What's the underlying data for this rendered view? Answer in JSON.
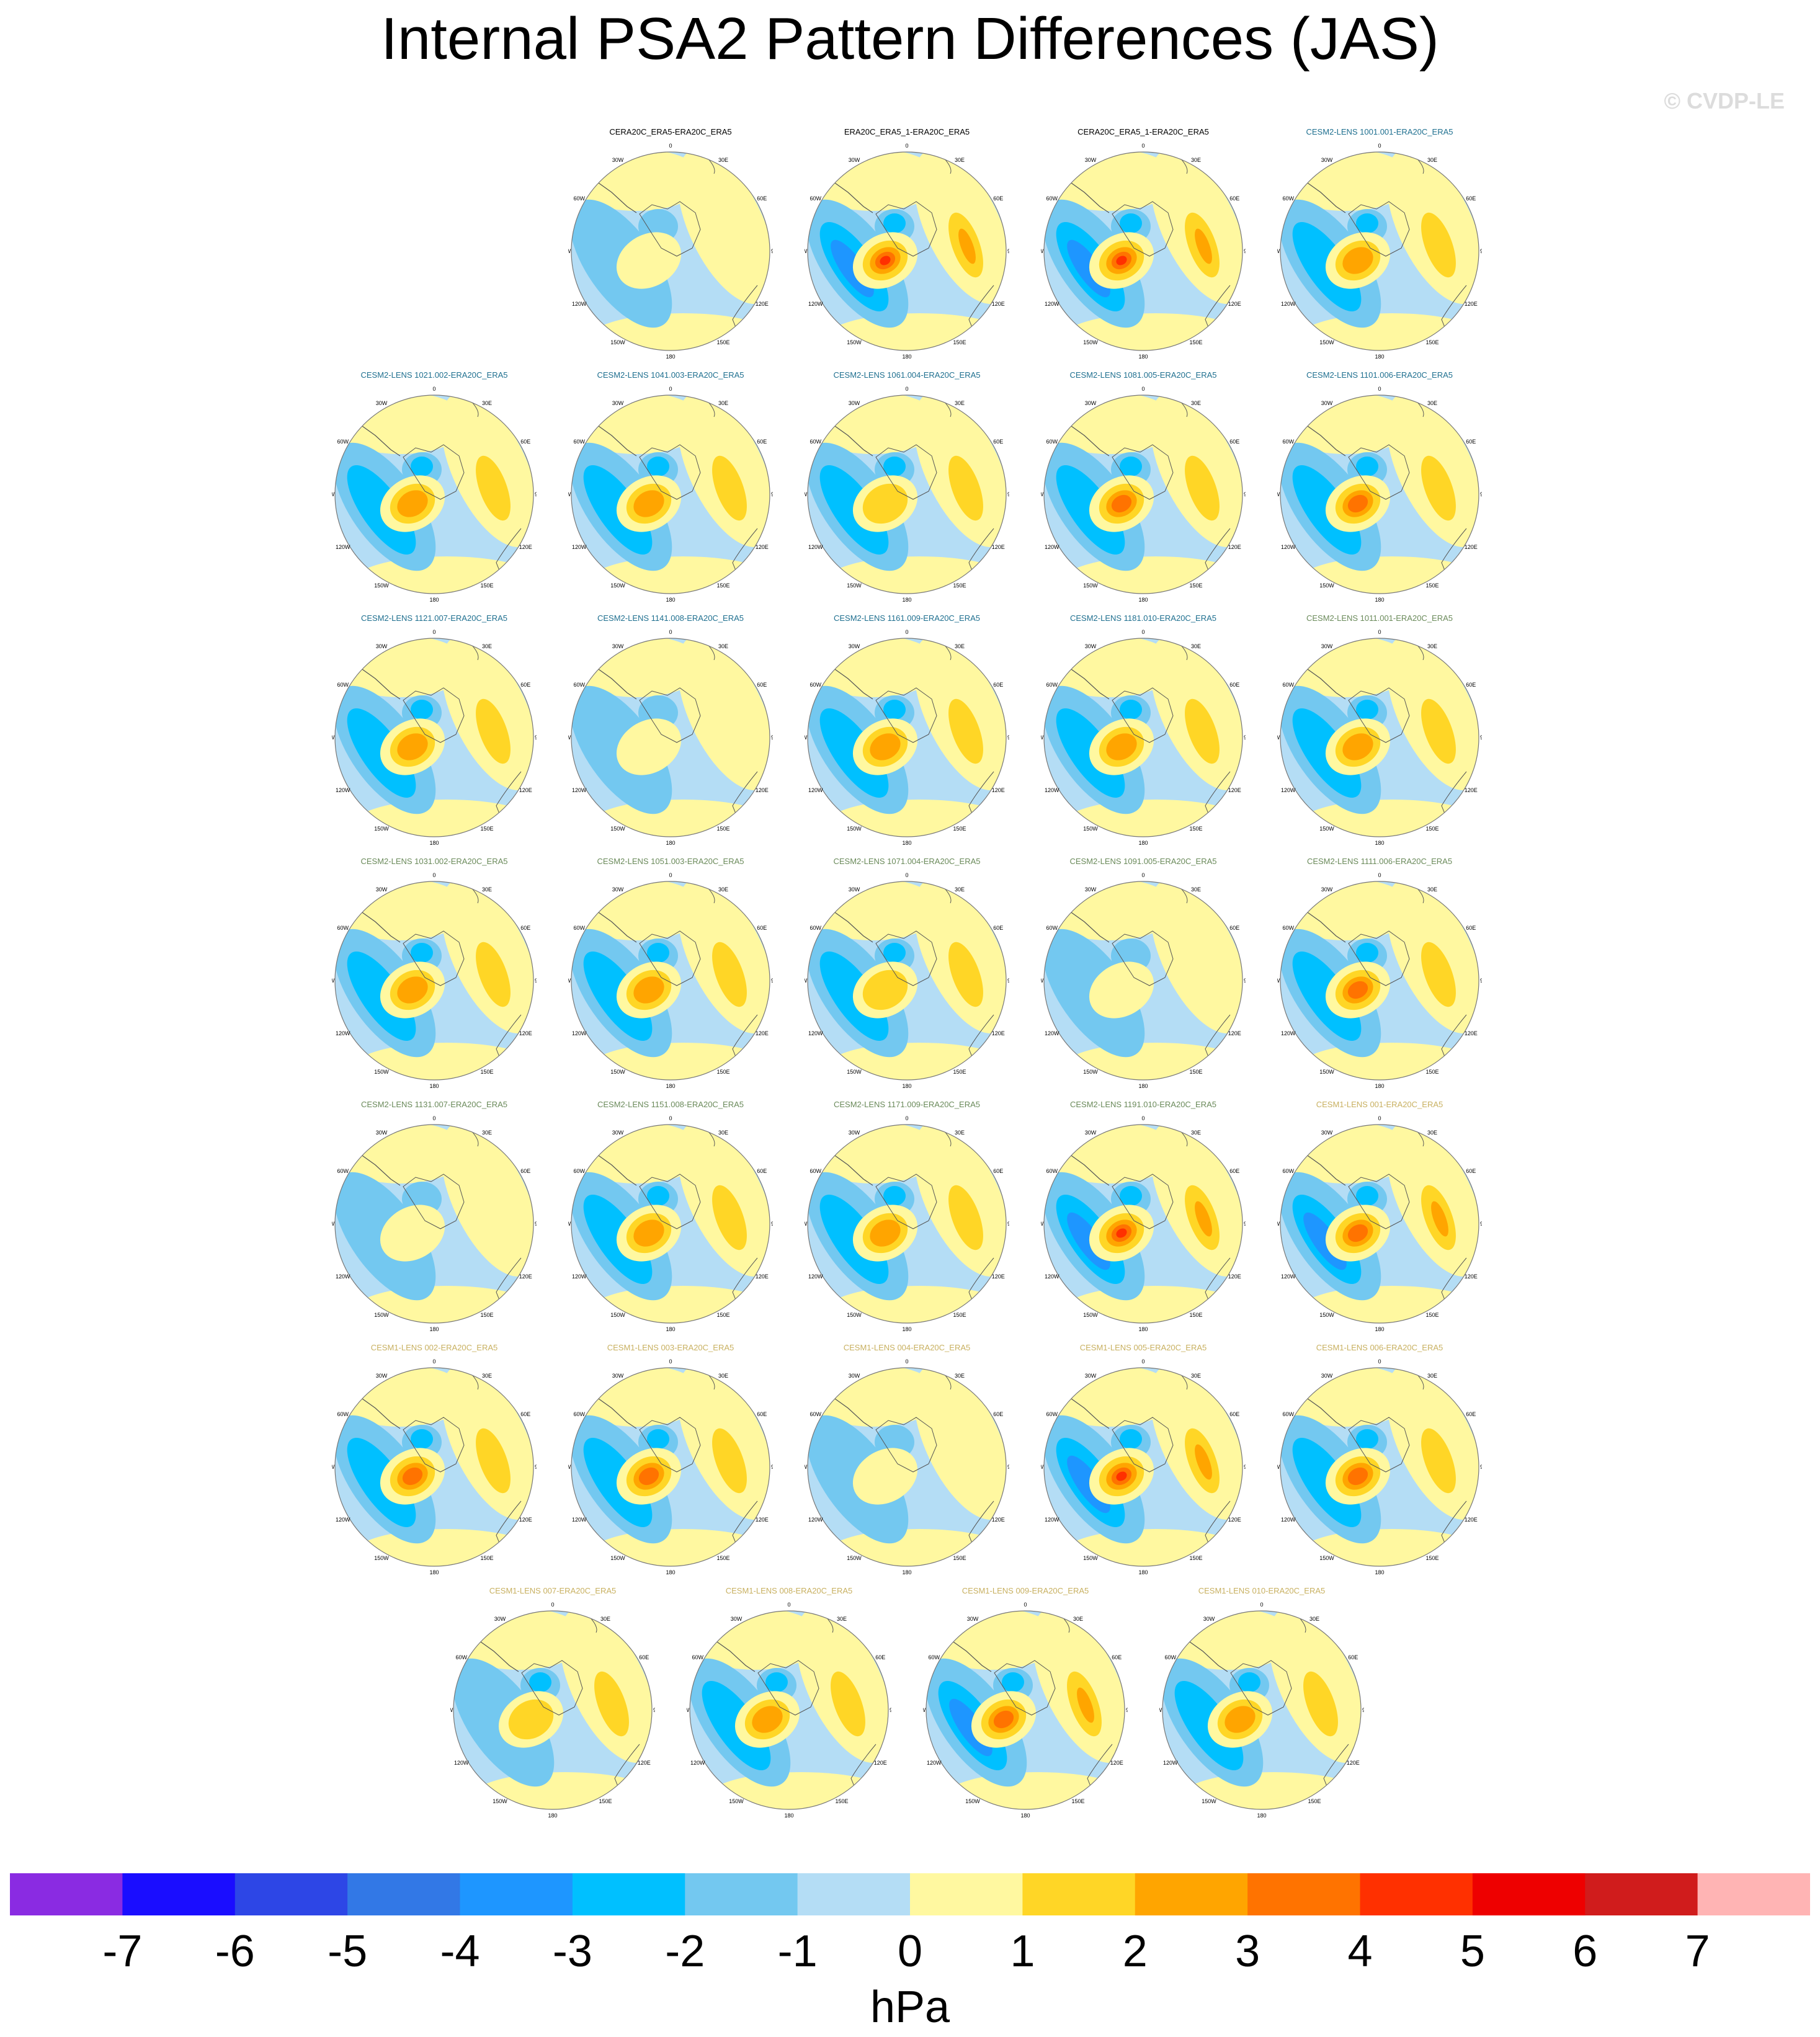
{
  "title": "Internal PSA2 Pattern Differences (JAS)",
  "watermark": "© CVDP-LE",
  "units": "hPa",
  "colors": {
    "title_era": "#000000",
    "title_cesm2_a": "#1e6f8f",
    "title_cesm2_b": "#6a8a5a",
    "title_cesm1": "#c8b060",
    "coast": "#555555"
  },
  "colorbar": {
    "colors": [
      "#8a2be2",
      "#1a0dff",
      "#2d46e6",
      "#3278e6",
      "#1e96ff",
      "#00c0ff",
      "#73c8f0",
      "#b4ddf5",
      "#fff8a0",
      "#ffd626",
      "#ffa500",
      "#ff7300",
      "#ff3000",
      "#ee0000",
      "#d01c1c",
      "#ffb4b4"
    ],
    "labels": [
      "-7",
      "-6",
      "-5",
      "-4",
      "-3",
      "-2",
      "-1",
      "0",
      "1",
      "2",
      "3",
      "4",
      "5",
      "6",
      "7"
    ]
  },
  "grid_labels": [
    "0",
    "30E",
    "60E",
    "90E",
    "120E",
    "150E",
    "180",
    "150W",
    "120W",
    "90W",
    "60W",
    "30W"
  ],
  "panels": [
    {
      "title": "CERA20C_ERA5-ERA20C_ERA5",
      "group": "era",
      "amp": 0.45
    },
    {
      "title": "ERA20C_ERA5_1-ERA20C_ERA5",
      "group": "era",
      "amp": 1.0
    },
    {
      "title": "CERA20C_ERA5_1-ERA20C_ERA5",
      "group": "era",
      "amp": 0.95
    },
    {
      "title": "CESM2-LENS 1001.001-ERA20C_ERA5",
      "group": "cesm2a",
      "amp": 0.7
    },
    {
      "title": "CESM2-LENS 1021.002-ERA20C_ERA5",
      "group": "cesm2a",
      "amp": 0.7
    },
    {
      "title": "CESM2-LENS 1041.003-ERA20C_ERA5",
      "group": "cesm2a",
      "amp": 0.7
    },
    {
      "title": "CESM2-LENS 1061.004-ERA20C_ERA5",
      "group": "cesm2a",
      "amp": 0.6
    },
    {
      "title": "CESM2-LENS 1081.005-ERA20C_ERA5",
      "group": "cesm2a",
      "amp": 0.8
    },
    {
      "title": "CESM2-LENS 1101.006-ERA20C_ERA5",
      "group": "cesm2a",
      "amp": 0.8
    },
    {
      "title": "CESM2-LENS 1121.007-ERA20C_ERA5",
      "group": "cesm2a",
      "amp": 0.75
    },
    {
      "title": "CESM2-LENS 1141.008-ERA20C_ERA5",
      "group": "cesm2a",
      "amp": 0.35
    },
    {
      "title": "CESM2-LENS 1161.009-ERA20C_ERA5",
      "group": "cesm2a",
      "amp": 0.65
    },
    {
      "title": "CESM2-LENS 1181.010-ERA20C_ERA5",
      "group": "cesm2a",
      "amp": 0.65
    },
    {
      "title": "CESM2-LENS 1011.001-ERA20C_ERA5",
      "group": "cesm2b",
      "amp": 0.7
    },
    {
      "title": "CESM2-LENS 1031.002-ERA20C_ERA5",
      "group": "cesm2b",
      "amp": 0.7
    },
    {
      "title": "CESM2-LENS 1051.003-ERA20C_ERA5",
      "group": "cesm2b",
      "amp": 0.7
    },
    {
      "title": "CESM2-LENS 1071.004-ERA20C_ERA5",
      "group": "cesm2b",
      "amp": 0.6
    },
    {
      "title": "CESM2-LENS 1091.005-ERA20C_ERA5",
      "group": "cesm2b",
      "amp": 0.45
    },
    {
      "title": "CESM2-LENS 1111.006-ERA20C_ERA5",
      "group": "cesm2b",
      "amp": 0.8
    },
    {
      "title": "CESM2-LENS 1131.007-ERA20C_ERA5",
      "group": "cesm2b",
      "amp": 0.4
    },
    {
      "title": "CESM2-LENS 1151.008-ERA20C_ERA5",
      "group": "cesm2b",
      "amp": 0.75
    },
    {
      "title": "CESM2-LENS 1171.009-ERA20C_ERA5",
      "group": "cesm2b",
      "amp": 0.7
    },
    {
      "title": "CESM2-LENS 1191.010-ERA20C_ERA5",
      "group": "cesm2b",
      "amp": 1.0
    },
    {
      "title": "CESM1-LENS 001-ERA20C_ERA5",
      "group": "cesm1",
      "amp": 0.9
    },
    {
      "title": "CESM1-LENS 002-ERA20C_ERA5",
      "group": "cesm1",
      "amp": 0.85
    },
    {
      "title": "CESM1-LENS 003-ERA20C_ERA5",
      "group": "cesm1",
      "amp": 0.8
    },
    {
      "title": "CESM1-LENS 004-ERA20C_ERA5",
      "group": "cesm1",
      "amp": 0.35
    },
    {
      "title": "CESM1-LENS 005-ERA20C_ERA5",
      "group": "cesm1",
      "amp": 0.95
    },
    {
      "title": "CESM1-LENS 006-ERA20C_ERA5",
      "group": "cesm1",
      "amp": 0.85
    },
    {
      "title": "CESM1-LENS 007-ERA20C_ERA5",
      "group": "cesm1",
      "amp": 0.55
    },
    {
      "title": "CESM1-LENS 008-ERA20C_ERA5",
      "group": "cesm1",
      "amp": 0.75
    },
    {
      "title": "CESM1-LENS 009-ERA20C_ERA5",
      "group": "cesm1",
      "amp": 0.9
    },
    {
      "title": "CESM1-LENS 010-ERA20C_ERA5",
      "group": "cesm1",
      "amp": 0.75
    }
  ]
}
